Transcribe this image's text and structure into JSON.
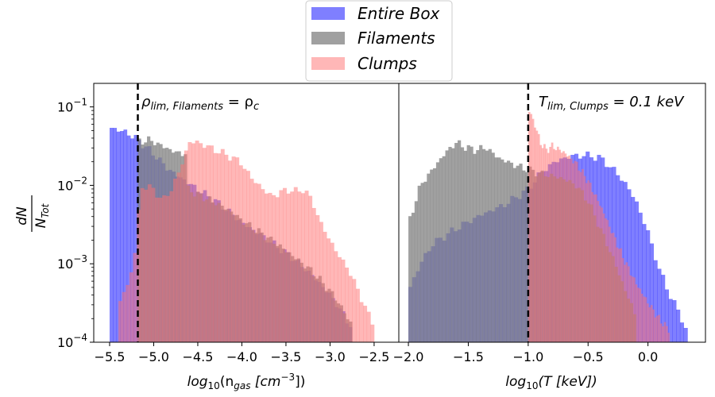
{
  "chart_data": [
    {
      "type": "histogram",
      "panel": "left",
      "xlabel_pre": "log",
      "xlabel_sub": "10",
      "xlabel_arg": "(n",
      "xlabel_arg_sub": "gas",
      "xlabel_unit": " [cm",
      "xlabel_unit_sup": "−3",
      "xlabel_post": "])",
      "ylabel_num": "dN",
      "ylabel_den": "N",
      "ylabel_den_sub": "Tot",
      "xlim": [
        -5.68,
        -2.22
      ],
      "ylim_log10": [
        -4,
        -0.7
      ],
      "xticks": [
        -5.5,
        -5.0,
        -4.5,
        -4.0,
        -3.5,
        -3.0,
        -2.5
      ],
      "xtick_labels": [
        "−5.5",
        "−5.0",
        "−4.5",
        "−4.0",
        "−3.5",
        "−3.0",
        "−2.5"
      ],
      "yticks_log10": [
        -4,
        -3,
        -2,
        -1
      ],
      "ytick_base": "10",
      "ytick_exps": [
        "−4",
        "−3",
        "−2",
        "−1"
      ],
      "vline_x": -5.18,
      "annotation": {
        "main": "ρ",
        "sub": "lim, Filaments",
        "rest": " = ρ",
        "rest_sub": "c"
      },
      "series": [
        {
          "name": "Entire Box",
          "color": "#0000ff",
          "alpha": 0.5,
          "start": -5.5,
          "end": -2.75,
          "knots": [
            [
              -5.5,
              -1.26
            ],
            [
              -5.3,
              -1.33
            ],
            [
              -5.18,
              -1.42
            ],
            [
              -5.0,
              -1.6
            ],
            [
              -4.85,
              -1.78
            ],
            [
              -4.7,
              -1.9
            ],
            [
              -4.5,
              -2.05
            ],
            [
              -4.3,
              -2.2
            ],
            [
              -4.1,
              -2.38
            ],
            [
              -4.0,
              -2.48
            ],
            [
              -3.8,
              -2.62
            ],
            [
              -3.6,
              -2.78
            ],
            [
              -3.4,
              -2.95
            ],
            [
              -3.2,
              -3.15
            ],
            [
              -3.0,
              -3.4
            ],
            [
              -2.9,
              -3.55
            ],
            [
              -2.8,
              -3.75
            ],
            [
              -2.75,
              -3.78
            ]
          ]
        },
        {
          "name": "Filaments",
          "color": "#808080",
          "alpha": 0.75,
          "start": -5.18,
          "end": -2.75,
          "knots": [
            [
              -5.18,
              -1.45
            ],
            [
              -5.05,
              -1.42
            ],
            [
              -4.9,
              -1.5
            ],
            [
              -4.75,
              -1.58
            ],
            [
              -4.62,
              -1.6
            ],
            [
              -4.61,
              -2.05
            ],
            [
              -4.5,
              -2.12
            ],
            [
              -4.3,
              -2.22
            ],
            [
              -4.1,
              -2.35
            ],
            [
              -4.0,
              -2.45
            ],
            [
              -3.8,
              -2.6
            ],
            [
              -3.6,
              -2.75
            ],
            [
              -3.4,
              -2.92
            ],
            [
              -3.2,
              -3.1
            ],
            [
              -3.0,
              -3.35
            ],
            [
              -2.9,
              -3.5
            ],
            [
              -2.8,
              -3.7
            ],
            [
              -2.75,
              -3.78
            ]
          ]
        },
        {
          "name": "Clumps",
          "color": "#ff7070",
          "alpha": 0.5,
          "start": -5.4,
          "end": -2.5,
          "knots": [
            [
              -5.4,
              -3.5
            ],
            [
              -5.3,
              -3.3
            ],
            [
              -5.2,
              -2.8
            ],
            [
              -5.15,
              -2.0
            ],
            [
              -5.0,
              -2.05
            ],
            [
              -4.9,
              -2.2
            ],
            [
              -4.8,
              -2.05
            ],
            [
              -4.7,
              -1.8
            ],
            [
              -4.6,
              -1.45
            ],
            [
              -4.5,
              -1.45
            ],
            [
              -4.3,
              -1.55
            ],
            [
              -4.1,
              -1.65
            ],
            [
              -4.0,
              -1.72
            ],
            [
              -3.9,
              -1.9
            ],
            [
              -3.8,
              -2.0
            ],
            [
              -3.7,
              -2.12
            ],
            [
              -3.6,
              -2.12
            ],
            [
              -3.5,
              -2.05
            ],
            [
              -3.4,
              -2.08
            ],
            [
              -3.3,
              -2.05
            ],
            [
              -3.2,
              -2.2
            ],
            [
              -3.1,
              -2.5
            ],
            [
              -3.0,
              -2.7
            ],
            [
              -2.9,
              -2.9
            ],
            [
              -2.8,
              -3.05
            ],
            [
              -2.7,
              -3.3
            ],
            [
              -2.6,
              -3.55
            ],
            [
              -2.55,
              -3.7
            ],
            [
              -2.5,
              -3.78
            ]
          ]
        }
      ]
    },
    {
      "type": "histogram",
      "panel": "right",
      "xlabel_pre": "log",
      "xlabel_sub": "10",
      "xlabel_arg": "(T [keV])",
      "xlim": [
        -2.08,
        0.48
      ],
      "ylim_log10": [
        -4,
        -0.7
      ],
      "xticks": [
        -2.0,
        -1.5,
        -1.0,
        -0.5,
        0.0
      ],
      "xtick_labels": [
        "−2.0",
        "−1.5",
        "−1.0",
        "−0.5",
        "0.0"
      ],
      "vline_x": -1.0,
      "annotation": {
        "main": "T",
        "sub": "lim, Clumps",
        "rest": " = 0.1 keV"
      },
      "series": [
        {
          "name": "Entire Box",
          "color": "#0000ff",
          "alpha": 0.5,
          "start": -2.0,
          "end": 0.33,
          "knots": [
            [
              -2.0,
              -3.35
            ],
            [
              -1.9,
              -3.0
            ],
            [
              -1.8,
              -2.75
            ],
            [
              -1.6,
              -2.55
            ],
            [
              -1.4,
              -2.38
            ],
            [
              -1.2,
              -2.25
            ],
            [
              -1.05,
              -2.1
            ],
            [
              -1.0,
              -2.05
            ],
            [
              -0.9,
              -1.85
            ],
            [
              -0.8,
              -1.72
            ],
            [
              -0.7,
              -1.65
            ],
            [
              -0.6,
              -1.62
            ],
            [
              -0.5,
              -1.62
            ],
            [
              -0.4,
              -1.65
            ],
            [
              -0.3,
              -1.78
            ],
            [
              -0.2,
              -1.95
            ],
            [
              -0.1,
              -2.2
            ],
            [
              0.0,
              -2.6
            ],
            [
              0.1,
              -3.1
            ],
            [
              0.2,
              -3.45
            ],
            [
              0.3,
              -3.75
            ],
            [
              0.33,
              -3.9
            ]
          ]
        },
        {
          "name": "Filaments",
          "color": "#808080",
          "alpha": 0.75,
          "start": -2.0,
          "end": -0.1,
          "knots": [
            [
              -2.0,
              -2.5
            ],
            [
              -1.9,
              -2.0
            ],
            [
              -1.8,
              -1.8
            ],
            [
              -1.7,
              -1.6
            ],
            [
              -1.6,
              -1.45
            ],
            [
              -1.55,
              -1.5
            ],
            [
              -1.45,
              -1.55
            ],
            [
              -1.35,
              -1.52
            ],
            [
              -1.25,
              -1.65
            ],
            [
              -1.1,
              -1.75
            ],
            [
              -1.0,
              -1.8
            ],
            [
              -0.9,
              -1.85
            ],
            [
              -0.8,
              -1.88
            ],
            [
              -0.7,
              -1.92
            ],
            [
              -0.6,
              -2.0
            ],
            [
              -0.5,
              -2.2
            ],
            [
              -0.4,
              -2.55
            ],
            [
              -0.3,
              -2.9
            ],
            [
              -0.2,
              -3.3
            ],
            [
              -0.12,
              -3.6
            ],
            [
              -0.1,
              -3.7
            ]
          ]
        },
        {
          "name": "Clumps",
          "color": "#ff7070",
          "alpha": 0.5,
          "start": -1.0,
          "end": 0.18,
          "knots": [
            [
              -1.0,
              -1.02
            ],
            [
              -0.95,
              -1.2
            ],
            [
              -0.9,
              -1.45
            ],
            [
              -0.85,
              -1.55
            ],
            [
              -0.8,
              -1.5
            ],
            [
              -0.7,
              -1.58
            ],
            [
              -0.6,
              -1.72
            ],
            [
              -0.5,
              -1.95
            ],
            [
              -0.4,
              -2.25
            ],
            [
              -0.3,
              -2.6
            ],
            [
              -0.2,
              -2.95
            ],
            [
              -0.1,
              -3.25
            ],
            [
              0.0,
              -3.5
            ],
            [
              0.1,
              -3.72
            ],
            [
              0.18,
              -3.85
            ]
          ]
        }
      ]
    }
  ],
  "legend": [
    {
      "label": "Entire Box",
      "color": "#0000ff",
      "alpha": 0.5
    },
    {
      "label": "Filaments",
      "color": "#808080",
      "alpha": 0.75
    },
    {
      "label": "Clumps",
      "color": "#ff7070",
      "alpha": 0.5
    }
  ]
}
